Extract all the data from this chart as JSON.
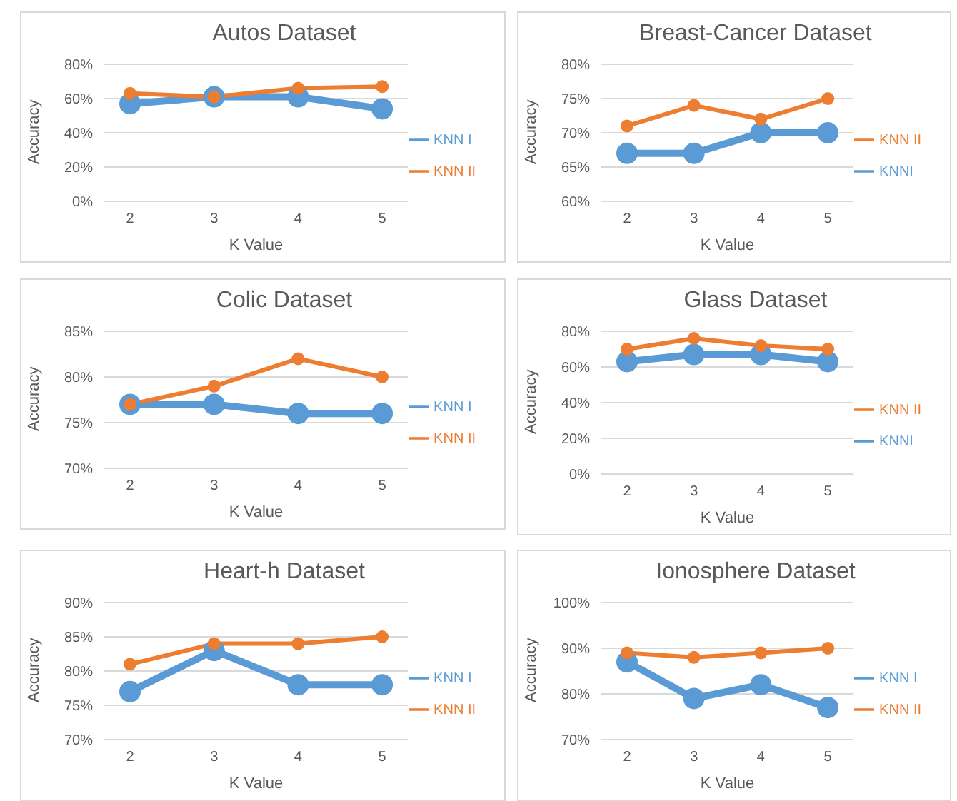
{
  "chart_data": [
    {
      "type": "line",
      "title": "Autos Dataset",
      "xlabel": "K Value",
      "ylabel": "Accuracy",
      "categories": [
        "2",
        "3",
        "4",
        "5"
      ],
      "series": [
        {
          "name": "KNN I",
          "color": "#5b9bd5",
          "values": [
            57,
            61,
            61,
            54
          ]
        },
        {
          "name": "KNN II",
          "color": "#ed7d31",
          "values": [
            63,
            61,
            66,
            67
          ]
        }
      ],
      "ylim": [
        0,
        80
      ],
      "yticks": [
        {
          "value": 0,
          "label": "0%"
        },
        {
          "value": 20,
          "label": "20%"
        },
        {
          "value": 40,
          "label": "40%"
        },
        {
          "value": 60,
          "label": "60%"
        },
        {
          "value": 80,
          "label": "80%"
        }
      ],
      "grid": "y",
      "legend": "right",
      "marker": "circle",
      "line_style": "solid"
    },
    {
      "type": "line",
      "title": "Breast-Cancer Dataset",
      "xlabel": "K Value",
      "ylabel": "Accuracy",
      "categories": [
        "2",
        "3",
        "4",
        "5"
      ],
      "series": [
        {
          "name": "KNNI",
          "color": "#5b9bd5",
          "values": [
            67,
            67,
            70,
            70
          ]
        },
        {
          "name": "KNN II",
          "color": "#ed7d31",
          "values": [
            71,
            74,
            72,
            75
          ]
        }
      ],
      "ylim": [
        60,
        80
      ],
      "yticks": [
        {
          "value": 60,
          "label": "60%"
        },
        {
          "value": 65,
          "label": "65%"
        },
        {
          "value": 70,
          "label": "70%"
        },
        {
          "value": 75,
          "label": "75%"
        },
        {
          "value": 80,
          "label": "80%"
        }
      ],
      "grid": "y",
      "legend": "right",
      "marker": "circle",
      "line_style": "solid"
    },
    {
      "type": "line",
      "title": "Colic Dataset",
      "xlabel": "K Value",
      "ylabel": "Accuracy",
      "categories": [
        "2",
        "3",
        "4",
        "5"
      ],
      "series": [
        {
          "name": "KNN I",
          "color": "#5b9bd5",
          "values": [
            77,
            77,
            76,
            76
          ]
        },
        {
          "name": "KNN II",
          "color": "#ed7d31",
          "values": [
            77,
            79,
            82,
            80
          ]
        }
      ],
      "ylim": [
        70,
        85
      ],
      "yticks": [
        {
          "value": 70,
          "label": "70%"
        },
        {
          "value": 75,
          "label": "75%"
        },
        {
          "value": 80,
          "label": "80%"
        },
        {
          "value": 85,
          "label": "85%"
        }
      ],
      "grid": "y",
      "legend": "right",
      "marker": "circle",
      "line_style": "solid"
    },
    {
      "type": "line",
      "title": "Glass Dataset",
      "xlabel": "K Value",
      "ylabel": "Accuracy",
      "categories": [
        "2",
        "3",
        "4",
        "5"
      ],
      "series": [
        {
          "name": "KNNI",
          "color": "#5b9bd5",
          "values": [
            63,
            67,
            67,
            63
          ]
        },
        {
          "name": "KNN II",
          "color": "#ed7d31",
          "values": [
            70,
            76,
            72,
            70
          ]
        }
      ],
      "ylim": [
        0,
        80
      ],
      "yticks": [
        {
          "value": 0,
          "label": "0%"
        },
        {
          "value": 20,
          "label": "20%"
        },
        {
          "value": 40,
          "label": "40%"
        },
        {
          "value": 60,
          "label": "60%"
        },
        {
          "value": 80,
          "label": "80%"
        }
      ],
      "grid": "y",
      "legend": "right",
      "marker": "circle",
      "line_style": "solid"
    },
    {
      "type": "line",
      "title": "Heart-h Dataset",
      "xlabel": "K Value",
      "ylabel": "Accuracy",
      "categories": [
        "2",
        "3",
        "4",
        "5"
      ],
      "series": [
        {
          "name": "KNN I",
          "color": "#5b9bd5",
          "values": [
            77,
            83,
            78,
            78
          ]
        },
        {
          "name": "KNN II",
          "color": "#ed7d31",
          "values": [
            81,
            84,
            84,
            85
          ]
        }
      ],
      "ylim": [
        70,
        90
      ],
      "yticks": [
        {
          "value": 70,
          "label": "70%"
        },
        {
          "value": 75,
          "label": "75%"
        },
        {
          "value": 80,
          "label": "80%"
        },
        {
          "value": 85,
          "label": "85%"
        },
        {
          "value": 90,
          "label": "90%"
        }
      ],
      "grid": "y",
      "legend": "right",
      "marker": "circle",
      "line_style": "solid"
    },
    {
      "type": "line",
      "title": "Ionosphere Dataset",
      "xlabel": "K Value",
      "ylabel": "Accuracy",
      "categories": [
        "2",
        "3",
        "4",
        "5"
      ],
      "series": [
        {
          "name": "KNN I",
          "color": "#5b9bd5",
          "values": [
            87,
            79,
            82,
            77
          ]
        },
        {
          "name": "KNN II",
          "color": "#ed7d31",
          "values": [
            89,
            88,
            89,
            90
          ]
        }
      ],
      "ylim": [
        70,
        100
      ],
      "yticks": [
        {
          "value": 70,
          "label": "70%"
        },
        {
          "value": 80,
          "label": "80%"
        },
        {
          "value": 90,
          "label": "90%"
        },
        {
          "value": 100,
          "label": "100%"
        }
      ],
      "grid": "y",
      "legend": "right",
      "marker": "circle",
      "line_style": "solid"
    }
  ]
}
